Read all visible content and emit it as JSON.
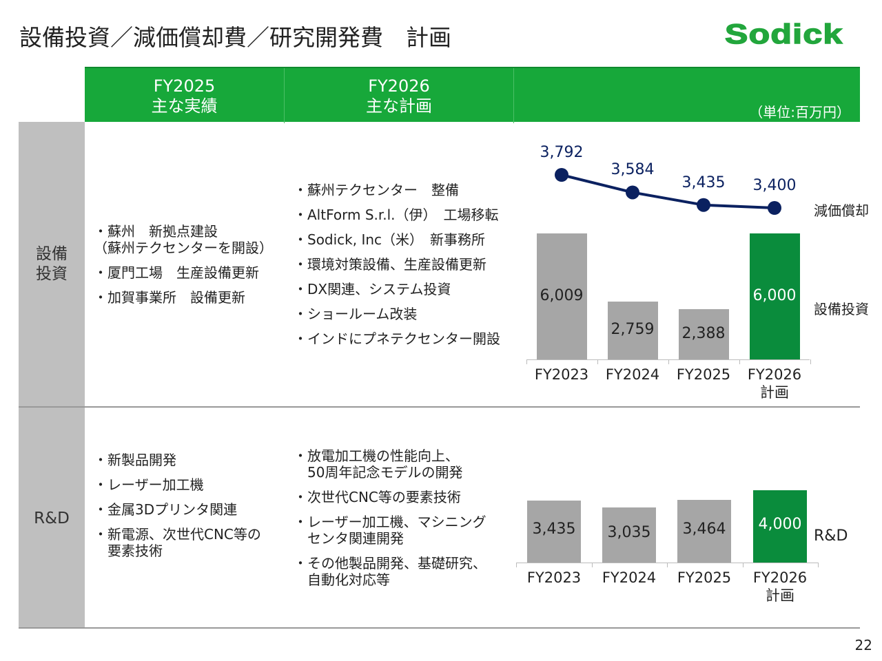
{
  "title": "設備投資／減価償却費／研究開発費　計画",
  "logo": "Sodick",
  "header": {
    "col1": [
      "FY2025",
      "主な実績"
    ],
    "col2": [
      "FY2026",
      "主な計画"
    ],
    "unit": "（単位:百万円）"
  },
  "rows": {
    "capex": {
      "label": [
        "設備",
        "投資"
      ],
      "fy2025": [
        "・蘇州　新拠点建設",
        "（蘇州テクセンターを開設）",
        "・厦門工場　生産設備更新",
        "・加賀事業所　設備更新"
      ],
      "fy2026": [
        "・蘇州テクセンター　整備",
        "・AltForm S.r.l.（伊）　工場移転",
        "・Sodick, Inc（米）　新事務所",
        "・環境対策設備、生産設備更新",
        "・DX関連、システム投資",
        "・ショールーム改装",
        "・インドにプネテクセンター開設"
      ]
    },
    "rnd": {
      "label": [
        "R&D"
      ],
      "fy2025": [
        "・新製品開発",
        "・レーザー加工機",
        "・金属3Dプリンタ関連",
        "・新電源、次世代CNC等の",
        "　要素技術"
      ],
      "fy2026": [
        "・放電加工機の性能向上、",
        "　50周年記念モデルの開発",
        "・次世代CNC等の要素技術",
        "・レーザー加工機、マシニング",
        "　センタ関連開発",
        "・その他製品開発、基礎研究、",
        "　自動化対応等"
      ]
    }
  },
  "chart_data": [
    {
      "type": "bar+line",
      "categories": [
        [
          "FY2023"
        ],
        [
          "FY2024"
        ],
        [
          "FY2025"
        ],
        [
          "FY2026",
          "計画"
        ]
      ],
      "series": [
        {
          "name": "減価償却",
          "type": "line",
          "values": [
            3792,
            3584,
            3435,
            3400
          ],
          "labels": [
            "3,792",
            "3,584",
            "3,435",
            "3,400"
          ],
          "color": "#0b2160"
        },
        {
          "name": "設備投資",
          "type": "bar",
          "values": [
            6009,
            2759,
            2388,
            6000
          ],
          "labels": [
            "6,009",
            "2,759",
            "2,388",
            "6,000"
          ],
          "colors": [
            "#a6a6a6",
            "#a6a6a6",
            "#a6a6a6",
            "#0a8c3c"
          ]
        }
      ]
    },
    {
      "type": "bar",
      "categories": [
        [
          "FY2023"
        ],
        [
          "FY2024"
        ],
        [
          "FY2025"
        ],
        [
          "FY2026",
          "計画"
        ]
      ],
      "series": [
        {
          "name": "R&D",
          "values": [
            3435,
            3035,
            3464,
            4000
          ],
          "labels": [
            "3,435",
            "3,035",
            "3,464",
            "4,000"
          ],
          "colors": [
            "#a6a6a6",
            "#a6a6a6",
            "#a6a6a6",
            "#0a8c3c"
          ]
        }
      ]
    }
  ],
  "page_number": "22"
}
